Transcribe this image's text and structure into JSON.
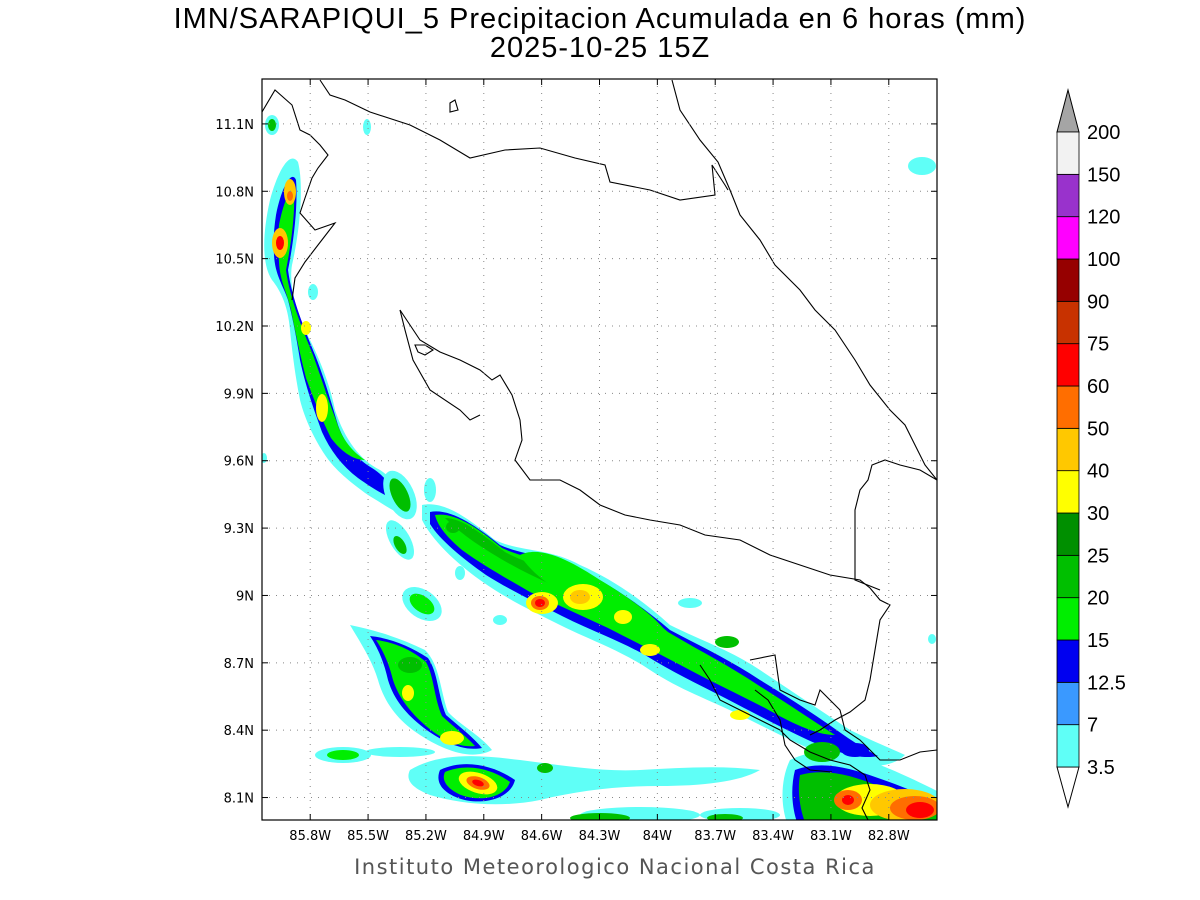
{
  "header": {
    "title_line1": "IMN/SARAPIQUI_5 Precipitacion Acumulada en 6 horas (mm)",
    "title_line2": "2025-10-25 15Z"
  },
  "footer": {
    "credit": "Instituto Meteorologico Nacional Costa Rica"
  },
  "map": {
    "lon_range": [
      -86.05,
      -82.55
    ],
    "lat_range": [
      8.0,
      11.3
    ],
    "lon_ticks": [
      -85.8,
      -85.5,
      -85.2,
      -84.9,
      -84.6,
      -84.3,
      -84.0,
      -83.7,
      -83.4,
      -83.1,
      -82.8
    ],
    "lon_tick_labels": [
      "85.8W",
      "85.5W",
      "85.2W",
      "84.9W",
      "84.6W",
      "84.3W",
      "84W",
      "83.7W",
      "83.4W",
      "83.1W",
      "82.8W"
    ],
    "lat_ticks": [
      8.1,
      8.4,
      8.7,
      9.0,
      9.3,
      9.6,
      9.9,
      10.2,
      10.5,
      10.8,
      11.1
    ],
    "lat_tick_labels": [
      "8.1N",
      "8.4N",
      "8.7N",
      "9N",
      "9.3N",
      "9.6N",
      "9.9N",
      "10.2N",
      "10.5N",
      "10.8N",
      "11.1N"
    ],
    "grid": true
  },
  "colorbar": {
    "levels": [
      "3.5",
      "7",
      "12.5",
      "15",
      "20",
      "25",
      "30",
      "40",
      "50",
      "60",
      "75",
      "90",
      "100",
      "120",
      "150",
      "200"
    ],
    "colors": [
      "#5ffff7",
      "#3a99ff",
      "#0000f0",
      "#00ee00",
      "#00bf00",
      "#008f00",
      "#ffff00",
      "#ffc800",
      "#ff6e00",
      "#ff0000",
      "#c83200",
      "#960000",
      "#ff00ff",
      "#9932cc",
      "#f2f2f2",
      "#a5a5a5"
    ]
  }
}
